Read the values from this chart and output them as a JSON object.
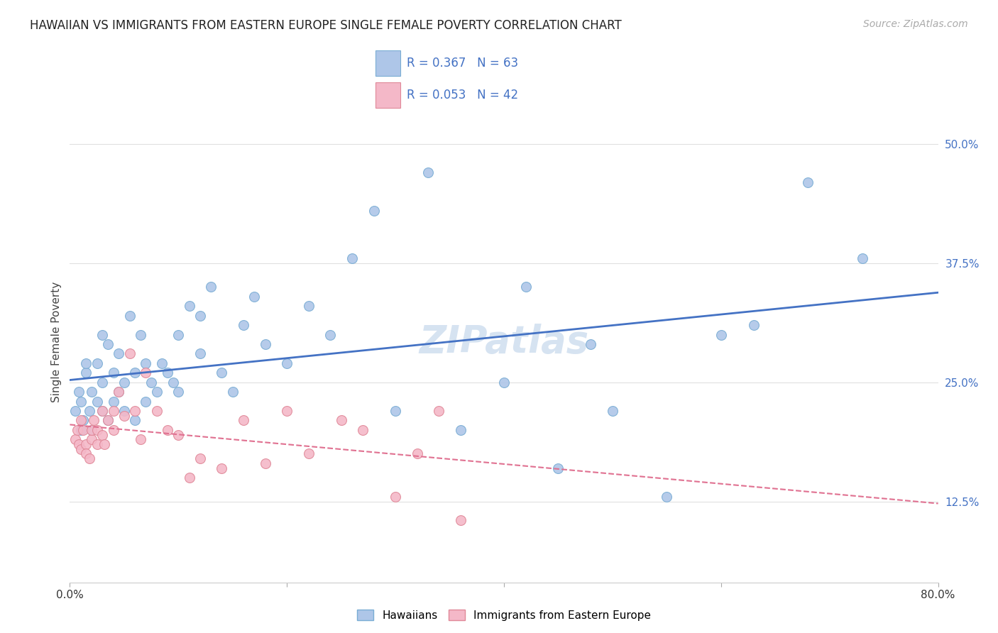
{
  "title": "HAWAIIAN VS IMMIGRANTS FROM EASTERN EUROPE SINGLE FEMALE POVERTY CORRELATION CHART",
  "source": "Source: ZipAtlas.com",
  "ylabel": "Single Female Poverty",
  "ytick_labels": [
    "12.5%",
    "25.0%",
    "37.5%",
    "50.0%"
  ],
  "ytick_values": [
    0.125,
    0.25,
    0.375,
    0.5
  ],
  "xmin": 0.0,
  "xmax": 0.8,
  "ymin": 0.04,
  "ymax": 0.545,
  "watermark": "ZIPatlas",
  "legend_text_color": "#4472c4",
  "series1_color": "#aec6e8",
  "series1_edge_color": "#7aadd4",
  "series2_color": "#f4b8c8",
  "series2_edge_color": "#e08898",
  "trendline1_color": "#4472c4",
  "trendline2_color": "#e07090",
  "trendline2_style": "--",
  "hawaiians_x": [
    0.005,
    0.008,
    0.01,
    0.01,
    0.012,
    0.015,
    0.015,
    0.018,
    0.02,
    0.02,
    0.025,
    0.025,
    0.03,
    0.03,
    0.03,
    0.035,
    0.035,
    0.04,
    0.04,
    0.045,
    0.045,
    0.05,
    0.05,
    0.055,
    0.06,
    0.06,
    0.065,
    0.07,
    0.07,
    0.075,
    0.08,
    0.085,
    0.09,
    0.095,
    0.1,
    0.1,
    0.11,
    0.12,
    0.12,
    0.13,
    0.14,
    0.15,
    0.16,
    0.17,
    0.18,
    0.2,
    0.22,
    0.24,
    0.26,
    0.28,
    0.3,
    0.33,
    0.36,
    0.4,
    0.42,
    0.45,
    0.48,
    0.5,
    0.55,
    0.6,
    0.63,
    0.68,
    0.73
  ],
  "hawaiians_y": [
    0.22,
    0.24,
    0.2,
    0.23,
    0.21,
    0.26,
    0.27,
    0.22,
    0.2,
    0.24,
    0.23,
    0.27,
    0.22,
    0.25,
    0.3,
    0.21,
    0.29,
    0.23,
    0.26,
    0.24,
    0.28,
    0.22,
    0.25,
    0.32,
    0.21,
    0.26,
    0.3,
    0.23,
    0.27,
    0.25,
    0.24,
    0.27,
    0.26,
    0.25,
    0.24,
    0.3,
    0.33,
    0.28,
    0.32,
    0.35,
    0.26,
    0.24,
    0.31,
    0.34,
    0.29,
    0.27,
    0.33,
    0.3,
    0.38,
    0.43,
    0.22,
    0.47,
    0.2,
    0.25,
    0.35,
    0.16,
    0.29,
    0.22,
    0.13,
    0.3,
    0.31,
    0.46,
    0.38
  ],
  "eastern_europe_x": [
    0.005,
    0.007,
    0.008,
    0.01,
    0.01,
    0.012,
    0.015,
    0.015,
    0.018,
    0.02,
    0.02,
    0.022,
    0.025,
    0.025,
    0.03,
    0.03,
    0.032,
    0.035,
    0.04,
    0.04,
    0.045,
    0.05,
    0.055,
    0.06,
    0.065,
    0.07,
    0.08,
    0.09,
    0.1,
    0.11,
    0.12,
    0.14,
    0.16,
    0.18,
    0.2,
    0.22,
    0.25,
    0.27,
    0.3,
    0.32,
    0.34,
    0.36
  ],
  "eastern_europe_y": [
    0.19,
    0.2,
    0.185,
    0.18,
    0.21,
    0.2,
    0.185,
    0.175,
    0.17,
    0.19,
    0.2,
    0.21,
    0.185,
    0.2,
    0.195,
    0.22,
    0.185,
    0.21,
    0.2,
    0.22,
    0.24,
    0.215,
    0.28,
    0.22,
    0.19,
    0.26,
    0.22,
    0.2,
    0.195,
    0.15,
    0.17,
    0.16,
    0.21,
    0.165,
    0.22,
    0.175,
    0.21,
    0.2,
    0.13,
    0.175,
    0.22,
    0.105
  ],
  "marker_size": 100,
  "title_fontsize": 12,
  "label_fontsize": 11,
  "tick_fontsize": 11,
  "source_fontsize": 10,
  "watermark_fontsize": 38,
  "watermark_color": "#ccdcee",
  "background_color": "#ffffff",
  "grid_color": "#e0e0e0"
}
